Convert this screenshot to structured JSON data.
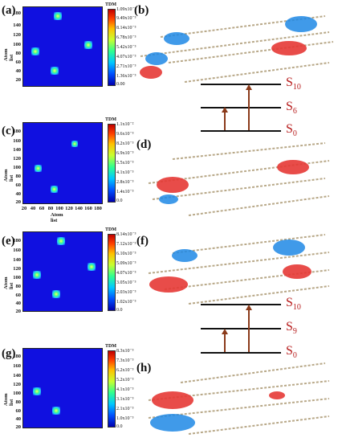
{
  "panels": {
    "a": {
      "label": "(a)",
      "cbar_title": "TDM",
      "ylabel": "Atom list",
      "cbar_ticks": [
        "1.09x10⁻²",
        "9.49x10⁻³",
        "8.14x10⁻³",
        "6.78x10⁻³",
        "5.42x10⁻³",
        "4.07x10⁻³",
        "2.71x10⁻³",
        "1.36x10⁻³",
        "0.00"
      ]
    },
    "b": {
      "label": "(b)"
    },
    "c": {
      "label": "(c)",
      "cbar_title": "TDM",
      "ylabel": "Atom list",
      "xlabel": "Atom list",
      "cbar_ticks": [
        "1.1x10⁻²",
        "9.6x10⁻³",
        "8.2x10⁻³",
        "6.9x10⁻³",
        "5.5x10⁻³",
        "4.1x10⁻³",
        "2.8x10⁻³",
        "1.4x10⁻³",
        "0.0"
      ]
    },
    "d": {
      "label": "(d)"
    },
    "e": {
      "label": "(e)",
      "cbar_title": "TDM",
      "ylabel": "Atom list",
      "cbar_ticks": [
        "8.14x10⁻³",
        "7.12x10⁻³",
        "6.10x10⁻³",
        "5.09x10⁻³",
        "4.07x10⁻³",
        "3.05x10⁻³",
        "2.03x10⁻³",
        "1.02x10⁻³",
        "0.0"
      ]
    },
    "f": {
      "label": "(f)"
    },
    "g": {
      "label": "(g)",
      "cbar_title": "TDM",
      "ylabel": "Atom list",
      "cbar_ticks": [
        "8.3x10⁻³",
        "7.3x10⁻³",
        "6.2x10⁻³",
        "5.2x10⁻³",
        "4.1x10⁻³",
        "3.1x10⁻³",
        "2.1x10⁻³",
        "1.0x10⁻³",
        "0.0"
      ]
    },
    "h": {
      "label": "(h)"
    }
  },
  "yticks": [
    "180",
    "160",
    "140",
    "120",
    "100",
    "80",
    "60",
    "40",
    "20"
  ],
  "xticks": [
    "20",
    "40",
    "60",
    "80",
    "100",
    "120",
    "140",
    "160",
    "180"
  ],
  "diagram1": {
    "levels": [
      {
        "S": "S",
        "n": "10"
      },
      {
        "S": "S",
        "n": "6"
      },
      {
        "S": "S",
        "n": "0"
      }
    ]
  },
  "diagram2": {
    "levels": [
      {
        "S": "S",
        "n": "10"
      },
      {
        "S": "S",
        "n": "9"
      },
      {
        "S": "S",
        "n": "0"
      }
    ]
  },
  "colors": {
    "arrow": "#8b3a1a",
    "label": "#b71c1c",
    "heat_bg": "#1010e0",
    "hole": "#1e88e5",
    "electron": "#e53935"
  }
}
